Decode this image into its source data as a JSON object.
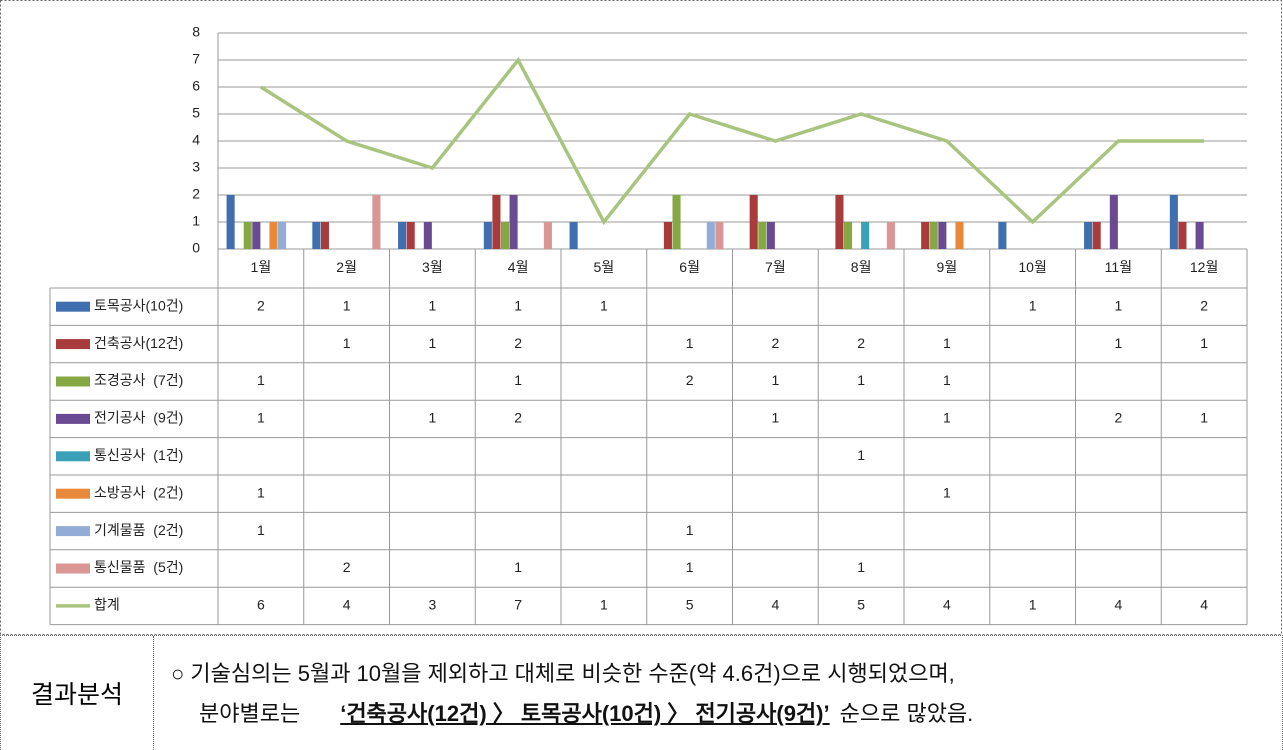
{
  "chart_data": {
    "type": "bar",
    "categories": [
      "1월",
      "2월",
      "3월",
      "4월",
      "5월",
      "6월",
      "7월",
      "8월",
      "9월",
      "10월",
      "11월",
      "12월"
    ],
    "ylim": [
      0,
      8
    ],
    "yticks": [
      0,
      1,
      2,
      3,
      4,
      5,
      6,
      7,
      8
    ],
    "grid": true,
    "series": [
      {
        "name": "토목공사(10건)",
        "color": "#3f6fae",
        "values": [
          2,
          1,
          1,
          1,
          1,
          null,
          null,
          null,
          null,
          1,
          1,
          2
        ]
      },
      {
        "name": "건축공사(12건)",
        "color": "#a83b3b",
        "values": [
          null,
          1,
          1,
          2,
          null,
          1,
          2,
          2,
          1,
          null,
          1,
          1
        ]
      },
      {
        "name": "조경공사  (7건)",
        "color": "#86a844",
        "values": [
          1,
          null,
          null,
          1,
          null,
          2,
          1,
          1,
          1,
          null,
          null,
          null
        ]
      },
      {
        "name": "전기공사  (9건)",
        "color": "#6a4b92",
        "values": [
          1,
          null,
          1,
          2,
          null,
          null,
          1,
          null,
          1,
          null,
          2,
          1
        ]
      },
      {
        "name": "통신공사  (1건)",
        "color": "#3aa0b8",
        "values": [
          null,
          null,
          null,
          null,
          null,
          null,
          null,
          1,
          null,
          null,
          null,
          null
        ]
      },
      {
        "name": "소방공사  (2건)",
        "color": "#e8883a",
        "values": [
          1,
          null,
          null,
          null,
          null,
          null,
          null,
          null,
          1,
          null,
          null,
          null
        ]
      },
      {
        "name": "기계물품  (2건)",
        "color": "#92acd6",
        "values": [
          1,
          null,
          null,
          null,
          null,
          1,
          null,
          null,
          null,
          null,
          null,
          null
        ]
      },
      {
        "name": "통신물품  (5건)",
        "color": "#d99694",
        "values": [
          null,
          2,
          null,
          1,
          null,
          1,
          null,
          1,
          null,
          null,
          null,
          null
        ]
      },
      {
        "name": "합계",
        "type": "line",
        "color": "#a9c47f",
        "values": [
          6,
          4,
          3,
          7,
          1,
          5,
          4,
          5,
          4,
          1,
          4,
          4
        ]
      }
    ]
  },
  "analysis": {
    "heading": "결과분석",
    "line1": "○ 기술심의는 5월과 10월을 제외하고 대체로 비슷한 수준(약 4.6건)으로 시행되었으며,",
    "line2_prefix": "분야별로는",
    "line2_emphasis": "‘건축공사(12건) 〉 토목공사(10건) 〉 전기공사(9건)’",
    "line2_suffix": "순으로 많았음."
  }
}
